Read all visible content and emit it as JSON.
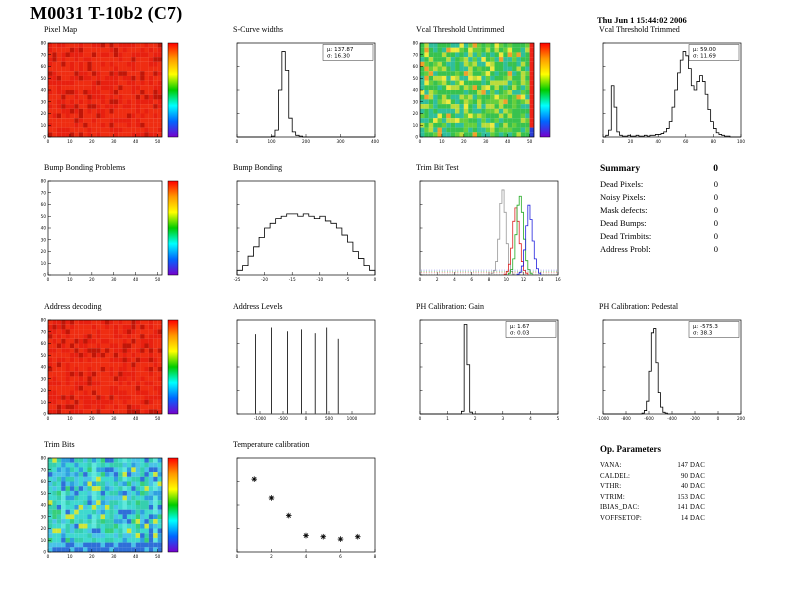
{
  "page": {
    "title": "M0031 T-10b2 (C7)",
    "timestamp": "Thu Jun 1 15:44:02 2006",
    "background": "#ffffff"
  },
  "heatmap_palettes": {
    "uniform_red": [
      "#ef2d12",
      "#e82010",
      "#c01608"
    ],
    "green_noise": [
      "#38c24e",
      "#2fbf9b",
      "#66cf3d",
      "#b9dc3c",
      "#eeea3e",
      "#f0a02c"
    ],
    "cyan_noise": [
      "#3fd9cf",
      "#36cfae",
      "#49c4e8",
      "#2f9fe0",
      "#37cf7a",
      "#2f6fd8",
      "#5fe8dc",
      "#cfe63a"
    ],
    "accents": {
      "map_edge_red": "#ef2418",
      "map_corner_blue": "#2b3fd6"
    },
    "colorbar": [
      "#7700cc",
      "#0066ff",
      "#00ffff",
      "#00cc00",
      "#ffff00",
      "#ff9900",
      "#ff0000"
    ]
  },
  "chart_data": [
    {
      "id": "pixel-map",
      "title": "Pixel Map",
      "type": "heatmap",
      "grid": {
        "row": 0,
        "col": 0
      },
      "x_range": [
        0,
        52
      ],
      "y_range": [
        0,
        80
      ],
      "x_ticks": [
        0,
        10,
        20,
        30,
        40,
        50
      ],
      "y_ticks": [
        0,
        10,
        20,
        30,
        40,
        50,
        60,
        70,
        80
      ],
      "style": "uniform_red",
      "colorbar": true
    },
    {
      "id": "scurve-widths",
      "title": "S-Curve widths",
      "type": "hist",
      "grid": {
        "row": 0,
        "col": 1
      },
      "x_start": 0,
      "bin_width": 10,
      "x_range": [
        0,
        400
      ],
      "ylim": [
        0,
        110
      ],
      "values": [
        0,
        0,
        0,
        0,
        0,
        0,
        0,
        0,
        0,
        0,
        1,
        8,
        55,
        100,
        78,
        22,
        6,
        2,
        1,
        0,
        0,
        0,
        0,
        0,
        0,
        0,
        0,
        0,
        0,
        0,
        0,
        0,
        0,
        0,
        0,
        0,
        0,
        0,
        0,
        0
      ],
      "x_ticks": [
        0,
        100,
        200,
        300,
        400
      ],
      "stats": [
        "μ: 137.87",
        "σ: 16.30"
      ]
    },
    {
      "id": "vcal-threshold-untrimmed",
      "title": "Vcal Threshold Untrimmed",
      "type": "heatmap",
      "grid": {
        "row": 0,
        "col": 2
      },
      "x_range": [
        0,
        52
      ],
      "y_range": [
        0,
        80
      ],
      "x_ticks": [
        0,
        10,
        20,
        30,
        40,
        50
      ],
      "y_ticks": [
        0,
        10,
        20,
        30,
        40,
        50,
        60,
        70,
        80
      ],
      "style": "green_noise",
      "colorbar": true
    },
    {
      "id": "vcal-threshold-trimmed",
      "title": "Vcal Threshold Trimmed",
      "type": "hist",
      "grid": {
        "row": 0,
        "col": 3
      },
      "x_start": 0,
      "bin_width": 2,
      "x_range": [
        0,
        100
      ],
      "ylim": [
        0,
        110
      ],
      "values": [
        0,
        2,
        8,
        60,
        35,
        6,
        2,
        1,
        1,
        2,
        1,
        1,
        2,
        1,
        1,
        2,
        1,
        2,
        2,
        3,
        3,
        4,
        6,
        10,
        18,
        35,
        55,
        75,
        90,
        100,
        95,
        80,
        60,
        55,
        65,
        72,
        65,
        50,
        32,
        18,
        10,
        5,
        3,
        2,
        1,
        1,
        0,
        0,
        0,
        0
      ],
      "x_ticks": [
        0,
        20,
        40,
        60,
        80,
        100
      ],
      "stats": [
        "μ: 59.00",
        "σ: 11.69"
      ]
    },
    {
      "id": "bump-bonding-problems",
      "title": "Bump Bonding Problems",
      "type": "heatmap",
      "grid": {
        "row": 1,
        "col": 0
      },
      "x_range": [
        0,
        52
      ],
      "y_range": [
        0,
        80
      ],
      "x_ticks": [
        0,
        10,
        20,
        30,
        40,
        50
      ],
      "y_ticks": [
        0,
        10,
        20,
        30,
        40,
        50,
        60,
        70,
        80
      ],
      "style": "empty",
      "colorbar": true
    },
    {
      "id": "bump-bonding",
      "title": "Bump Bonding",
      "type": "hist",
      "grid": {
        "row": 1,
        "col": 1
      },
      "x_start": -25,
      "bin_width": 1,
      "x_range": [
        -25,
        0
      ],
      "ylim": [
        0,
        20
      ],
      "values": [
        1,
        2,
        4,
        6,
        8,
        10,
        11,
        12,
        12.5,
        13,
        13,
        12.5,
        13,
        12.5,
        12,
        12.5,
        11.5,
        11,
        10,
        8.5,
        7,
        5,
        3.5,
        2,
        1
      ],
      "x_ticks": [
        -25,
        -20,
        -15,
        -10,
        -5,
        0
      ]
    },
    {
      "id": "trim-bit-test",
      "title": "Trim Bit Test",
      "type": "multihist",
      "grid": {
        "row": 1,
        "col": 2
      },
      "x_range": [
        0,
        16
      ],
      "ylim": [
        0,
        105
      ],
      "x_ticks": [
        0,
        2,
        4,
        6,
        8,
        10,
        12,
        14,
        16
      ],
      "series": [
        {
          "name": "gray",
          "color": "#999999",
          "x_start": 8.25,
          "bin_width": 0.25,
          "values": [
            2,
            5,
            15,
            40,
            80,
            95,
            70,
            35,
            12,
            4,
            1
          ]
        },
        {
          "name": "red",
          "color": "#dd2222",
          "x_start": 9.75,
          "bin_width": 0.25,
          "values": [
            1,
            4,
            12,
            30,
            60,
            75,
            60,
            35,
            15,
            5,
            2
          ]
        },
        {
          "name": "green",
          "color": "#22aa22",
          "x_start": 10.25,
          "bin_width": 0.25,
          "values": [
            2,
            6,
            18,
            45,
            78,
            88,
            70,
            40,
            16,
            6,
            2
          ]
        },
        {
          "name": "blue",
          "color": "#2222dd",
          "x_start": 11.25,
          "bin_width": 0.25,
          "values": [
            1,
            3,
            10,
            28,
            55,
            78,
            62,
            38,
            18,
            7,
            2
          ]
        }
      ]
    },
    {
      "id": "address-decoding",
      "title": "Address decoding",
      "type": "heatmap",
      "grid": {
        "row": 2,
        "col": 0
      },
      "x_range": [
        0,
        52
      ],
      "y_range": [
        0,
        80
      ],
      "x_ticks": [
        0,
        10,
        20,
        30,
        40,
        50
      ],
      "y_ticks": [
        0,
        10,
        20,
        30,
        40,
        50,
        60,
        70,
        80
      ],
      "style": "uniform_red",
      "colorbar": true
    },
    {
      "id": "address-levels",
      "title": "Address Levels",
      "type": "spikes",
      "grid": {
        "row": 2,
        "col": 1
      },
      "x_range": [
        -1500,
        1500
      ],
      "ylim": [
        0,
        100
      ],
      "x_ticks": [
        -1000,
        -500,
        0,
        500,
        1000
      ],
      "spikes": [
        {
          "x": -1100,
          "h": 85
        },
        {
          "x": -750,
          "h": 92
        },
        {
          "x": -400,
          "h": 88
        },
        {
          "x": -100,
          "h": 90
        },
        {
          "x": 200,
          "h": 86
        },
        {
          "x": 450,
          "h": 92
        },
        {
          "x": 700,
          "h": 80
        }
      ]
    },
    {
      "id": "ph-calibration-gain",
      "title": "PH Calibration: Gain",
      "type": "hist",
      "grid": {
        "row": 2,
        "col": 2
      },
      "x_start": 0,
      "bin_width": 0.1,
      "x_range": [
        0,
        5
      ],
      "ylim": [
        0,
        105
      ],
      "values": [
        0,
        0,
        0,
        0,
        0,
        0,
        0,
        0,
        0,
        0,
        0,
        0,
        0,
        0,
        0,
        3,
        100,
        55,
        2,
        0,
        0,
        0,
        0,
        0,
        0,
        0,
        0,
        0,
        0,
        0,
        0,
        0,
        0,
        0,
        0,
        0,
        0,
        0,
        0,
        0,
        0,
        0,
        0,
        0,
        0,
        0,
        0,
        0,
        0,
        0
      ],
      "x_ticks": [
        0,
        1,
        2,
        3,
        4,
        5
      ],
      "stats": [
        "μ: 1.67",
        "σ: 0.03"
      ]
    },
    {
      "id": "ph-calibration-pedestal",
      "title": "PH Calibration: Pedestal",
      "type": "hist",
      "grid": {
        "row": 2,
        "col": 3
      },
      "x_start": -1000,
      "bin_width": 20,
      "x_range": [
        -1000,
        200
      ],
      "ylim": [
        0,
        110
      ],
      "values": [
        0,
        0,
        0,
        0,
        0,
        0,
        0,
        0,
        0,
        0,
        0,
        0,
        0,
        0,
        0,
        0,
        0,
        1,
        4,
        15,
        50,
        95,
        100,
        60,
        25,
        8,
        2,
        1,
        0,
        0,
        0,
        0,
        0,
        0,
        0,
        0,
        0,
        0,
        0,
        0,
        0,
        0,
        0,
        0,
        0,
        0,
        0,
        0,
        0,
        0,
        0,
        0,
        0,
        0,
        0,
        0,
        0,
        0,
        0,
        0
      ],
      "x_ticks": [
        -1000,
        -800,
        -600,
        -400,
        -200,
        0,
        200
      ],
      "stats": [
        "μ: -575.3",
        "σ: 38.3"
      ]
    },
    {
      "id": "trim-bits",
      "title": "Trim Bits",
      "type": "heatmap",
      "grid": {
        "row": 3,
        "col": 0
      },
      "x_range": [
        0,
        52
      ],
      "y_range": [
        0,
        80
      ],
      "x_ticks": [
        0,
        10,
        20,
        30,
        40,
        50
      ],
      "y_ticks": [
        0,
        10,
        20,
        30,
        40,
        50,
        60,
        70,
        80
      ],
      "style": "cyan_noise",
      "colorbar": true
    },
    {
      "id": "temperature-calibration",
      "title": "Temperature calibration",
      "type": "scatter",
      "grid": {
        "row": 3,
        "col": 1
      },
      "marker": "asterisk",
      "x_range": [
        0,
        8
      ],
      "y_range": [
        0,
        80
      ],
      "x_ticks": [
        0,
        2,
        4,
        6,
        8
      ],
      "points": [
        [
          1,
          62
        ],
        [
          2,
          46
        ],
        [
          3,
          31
        ],
        [
          4,
          14
        ],
        [
          5,
          13
        ],
        [
          6,
          11
        ],
        [
          7,
          13
        ]
      ]
    }
  ],
  "summary": {
    "title": "Summary",
    "total": "0",
    "rows": [
      {
        "label": "Dead Pixels:",
        "value": "0"
      },
      {
        "label": "Noisy Pixels:",
        "value": "0"
      },
      {
        "label": "Mask defects:",
        "value": "0"
      },
      {
        "label": "Dead Bumps:",
        "value": "0"
      },
      {
        "label": "Dead Trimbits:",
        "value": "0"
      },
      {
        "label": "Address Probl:",
        "value": "0"
      }
    ]
  },
  "op_parameters": {
    "title": "Op. Parameters",
    "rows": [
      {
        "label": "VANA:",
        "value": "147 DAC"
      },
      {
        "label": "CALDEL:",
        "value": "90 DAC"
      },
      {
        "label": "VTHR:",
        "value": "40 DAC"
      },
      {
        "label": "VTRIM:",
        "value": "153 DAC"
      },
      {
        "label": "IBIAS_DAC:",
        "value": "141 DAC"
      },
      {
        "label": "VOFFSETOP:",
        "value": "14 DAC"
      }
    ]
  }
}
